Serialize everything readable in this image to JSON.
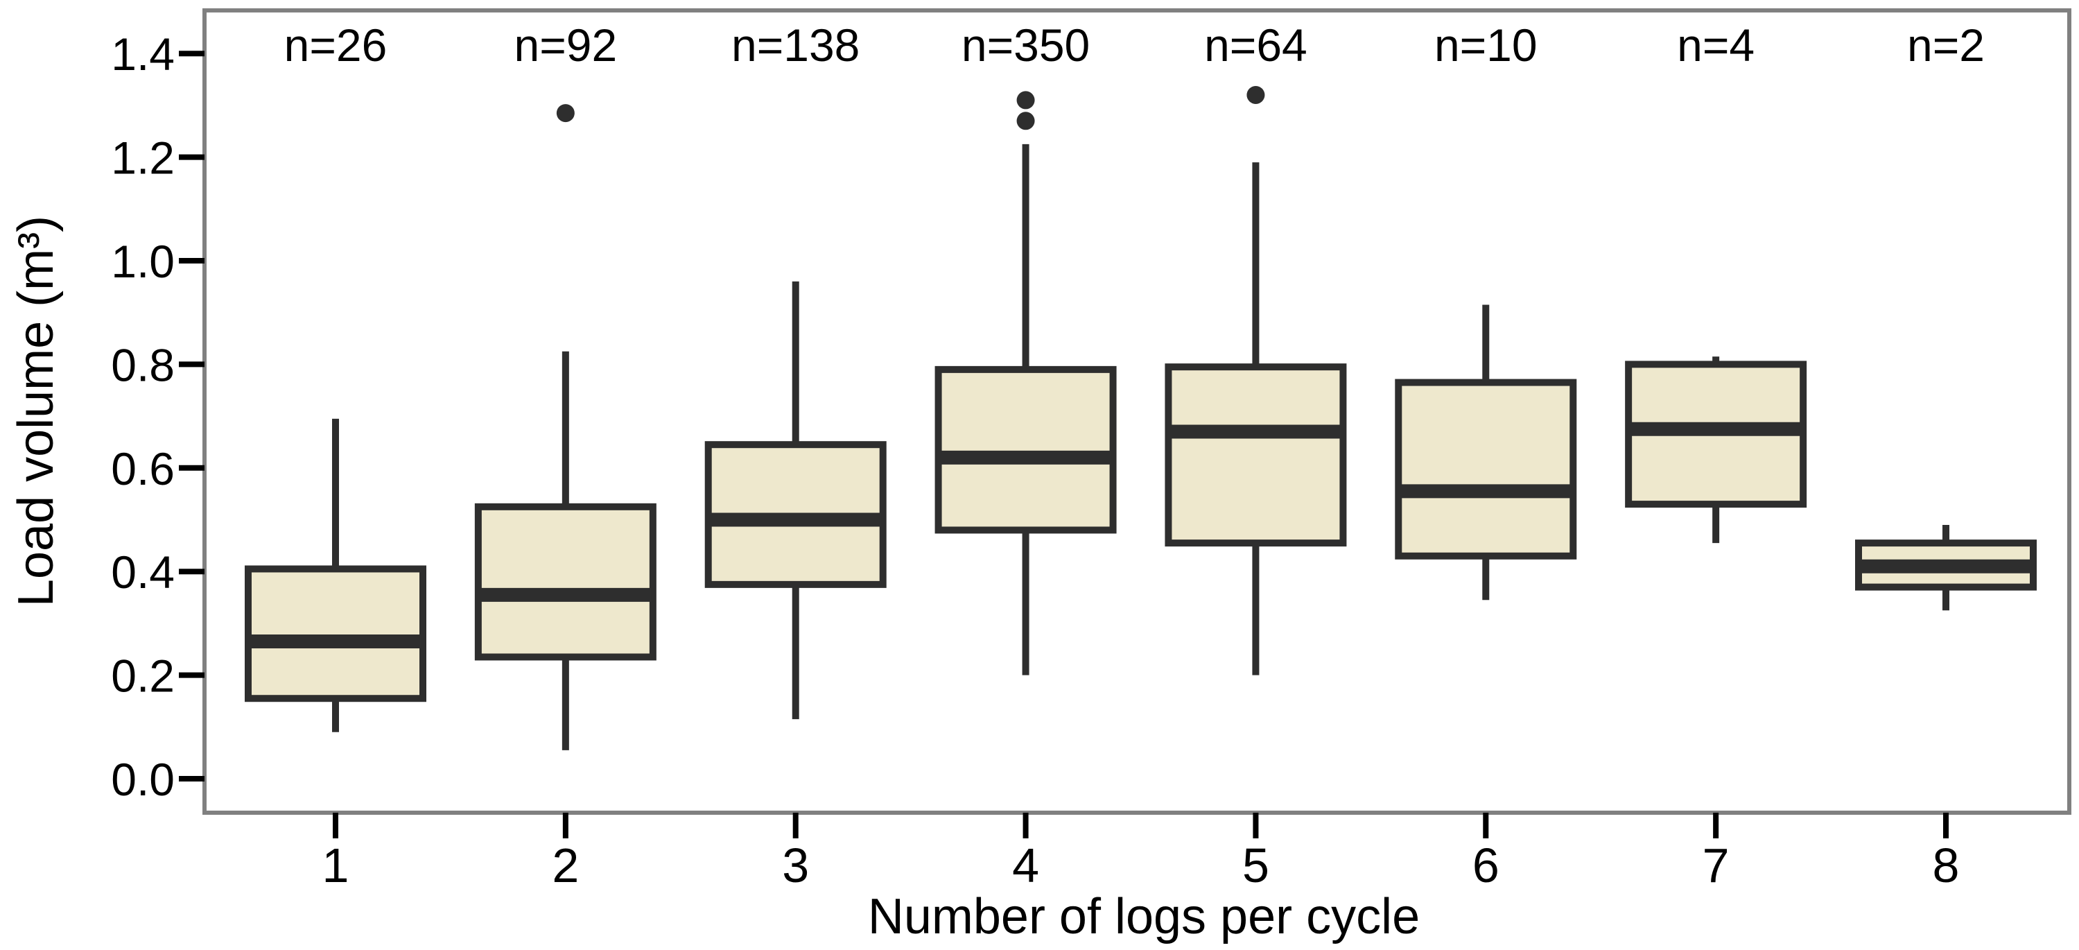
{
  "chart_data": {
    "type": "boxplot",
    "title": "",
    "xlabel": "Number of logs per cycle",
    "ylabel": "Load volume (m³)",
    "categories": [
      "1",
      "2",
      "3",
      "4",
      "5",
      "6",
      "7",
      "8"
    ],
    "sample_size_labels": [
      "n=26",
      "n=92",
      "n=138",
      "n=350",
      "n=64",
      "n=10",
      "n=4",
      "n=2"
    ],
    "yticks": [
      "0.0",
      "0.2",
      "0.4",
      "0.6",
      "0.8",
      "1.0",
      "1.2",
      "1.4"
    ],
    "ytick_values": [
      0.0,
      0.2,
      0.4,
      0.6,
      0.8,
      1.0,
      1.2,
      1.4
    ],
    "ylim": [
      -0.07,
      1.48
    ],
    "grid": false,
    "legend": "none",
    "boxes": [
      {
        "category": "1",
        "n": 26,
        "whisker_low": 0.09,
        "q1": 0.155,
        "median": 0.265,
        "q3": 0.405,
        "whisker_high": 0.695,
        "outliers": []
      },
      {
        "category": "2",
        "n": 92,
        "whisker_low": 0.055,
        "q1": 0.235,
        "median": 0.355,
        "q3": 0.525,
        "whisker_high": 0.825,
        "outliers": [
          1.285
        ]
      },
      {
        "category": "3",
        "n": 138,
        "whisker_low": 0.115,
        "q1": 0.375,
        "median": 0.5,
        "q3": 0.645,
        "whisker_high": 0.96,
        "outliers": []
      },
      {
        "category": "4",
        "n": 350,
        "whisker_low": 0.2,
        "q1": 0.48,
        "median": 0.62,
        "q3": 0.79,
        "whisker_high": 1.225,
        "outliers": [
          1.27,
          1.31
        ]
      },
      {
        "category": "5",
        "n": 64,
        "whisker_low": 0.2,
        "q1": 0.455,
        "median": 0.67,
        "q3": 0.795,
        "whisker_high": 1.19,
        "outliers": [
          1.32
        ]
      },
      {
        "category": "6",
        "n": 10,
        "whisker_low": 0.345,
        "q1": 0.43,
        "median": 0.555,
        "q3": 0.765,
        "whisker_high": 0.915,
        "outliers": []
      },
      {
        "category": "7",
        "n": 4,
        "whisker_low": 0.455,
        "q1": 0.53,
        "median": 0.675,
        "q3": 0.8,
        "whisker_high": 0.815,
        "outliers": []
      },
      {
        "category": "8",
        "n": 2,
        "whisker_low": 0.325,
        "q1": 0.37,
        "median": 0.41,
        "q3": 0.455,
        "whisker_high": 0.49,
        "outliers": []
      }
    ],
    "colors": {
      "box_fill": "#EEE8CD",
      "line": "#2E2E2E",
      "panel_border": "#808080",
      "tick": "#000000",
      "text": "#000000",
      "background": "#FFFFFF"
    }
  }
}
